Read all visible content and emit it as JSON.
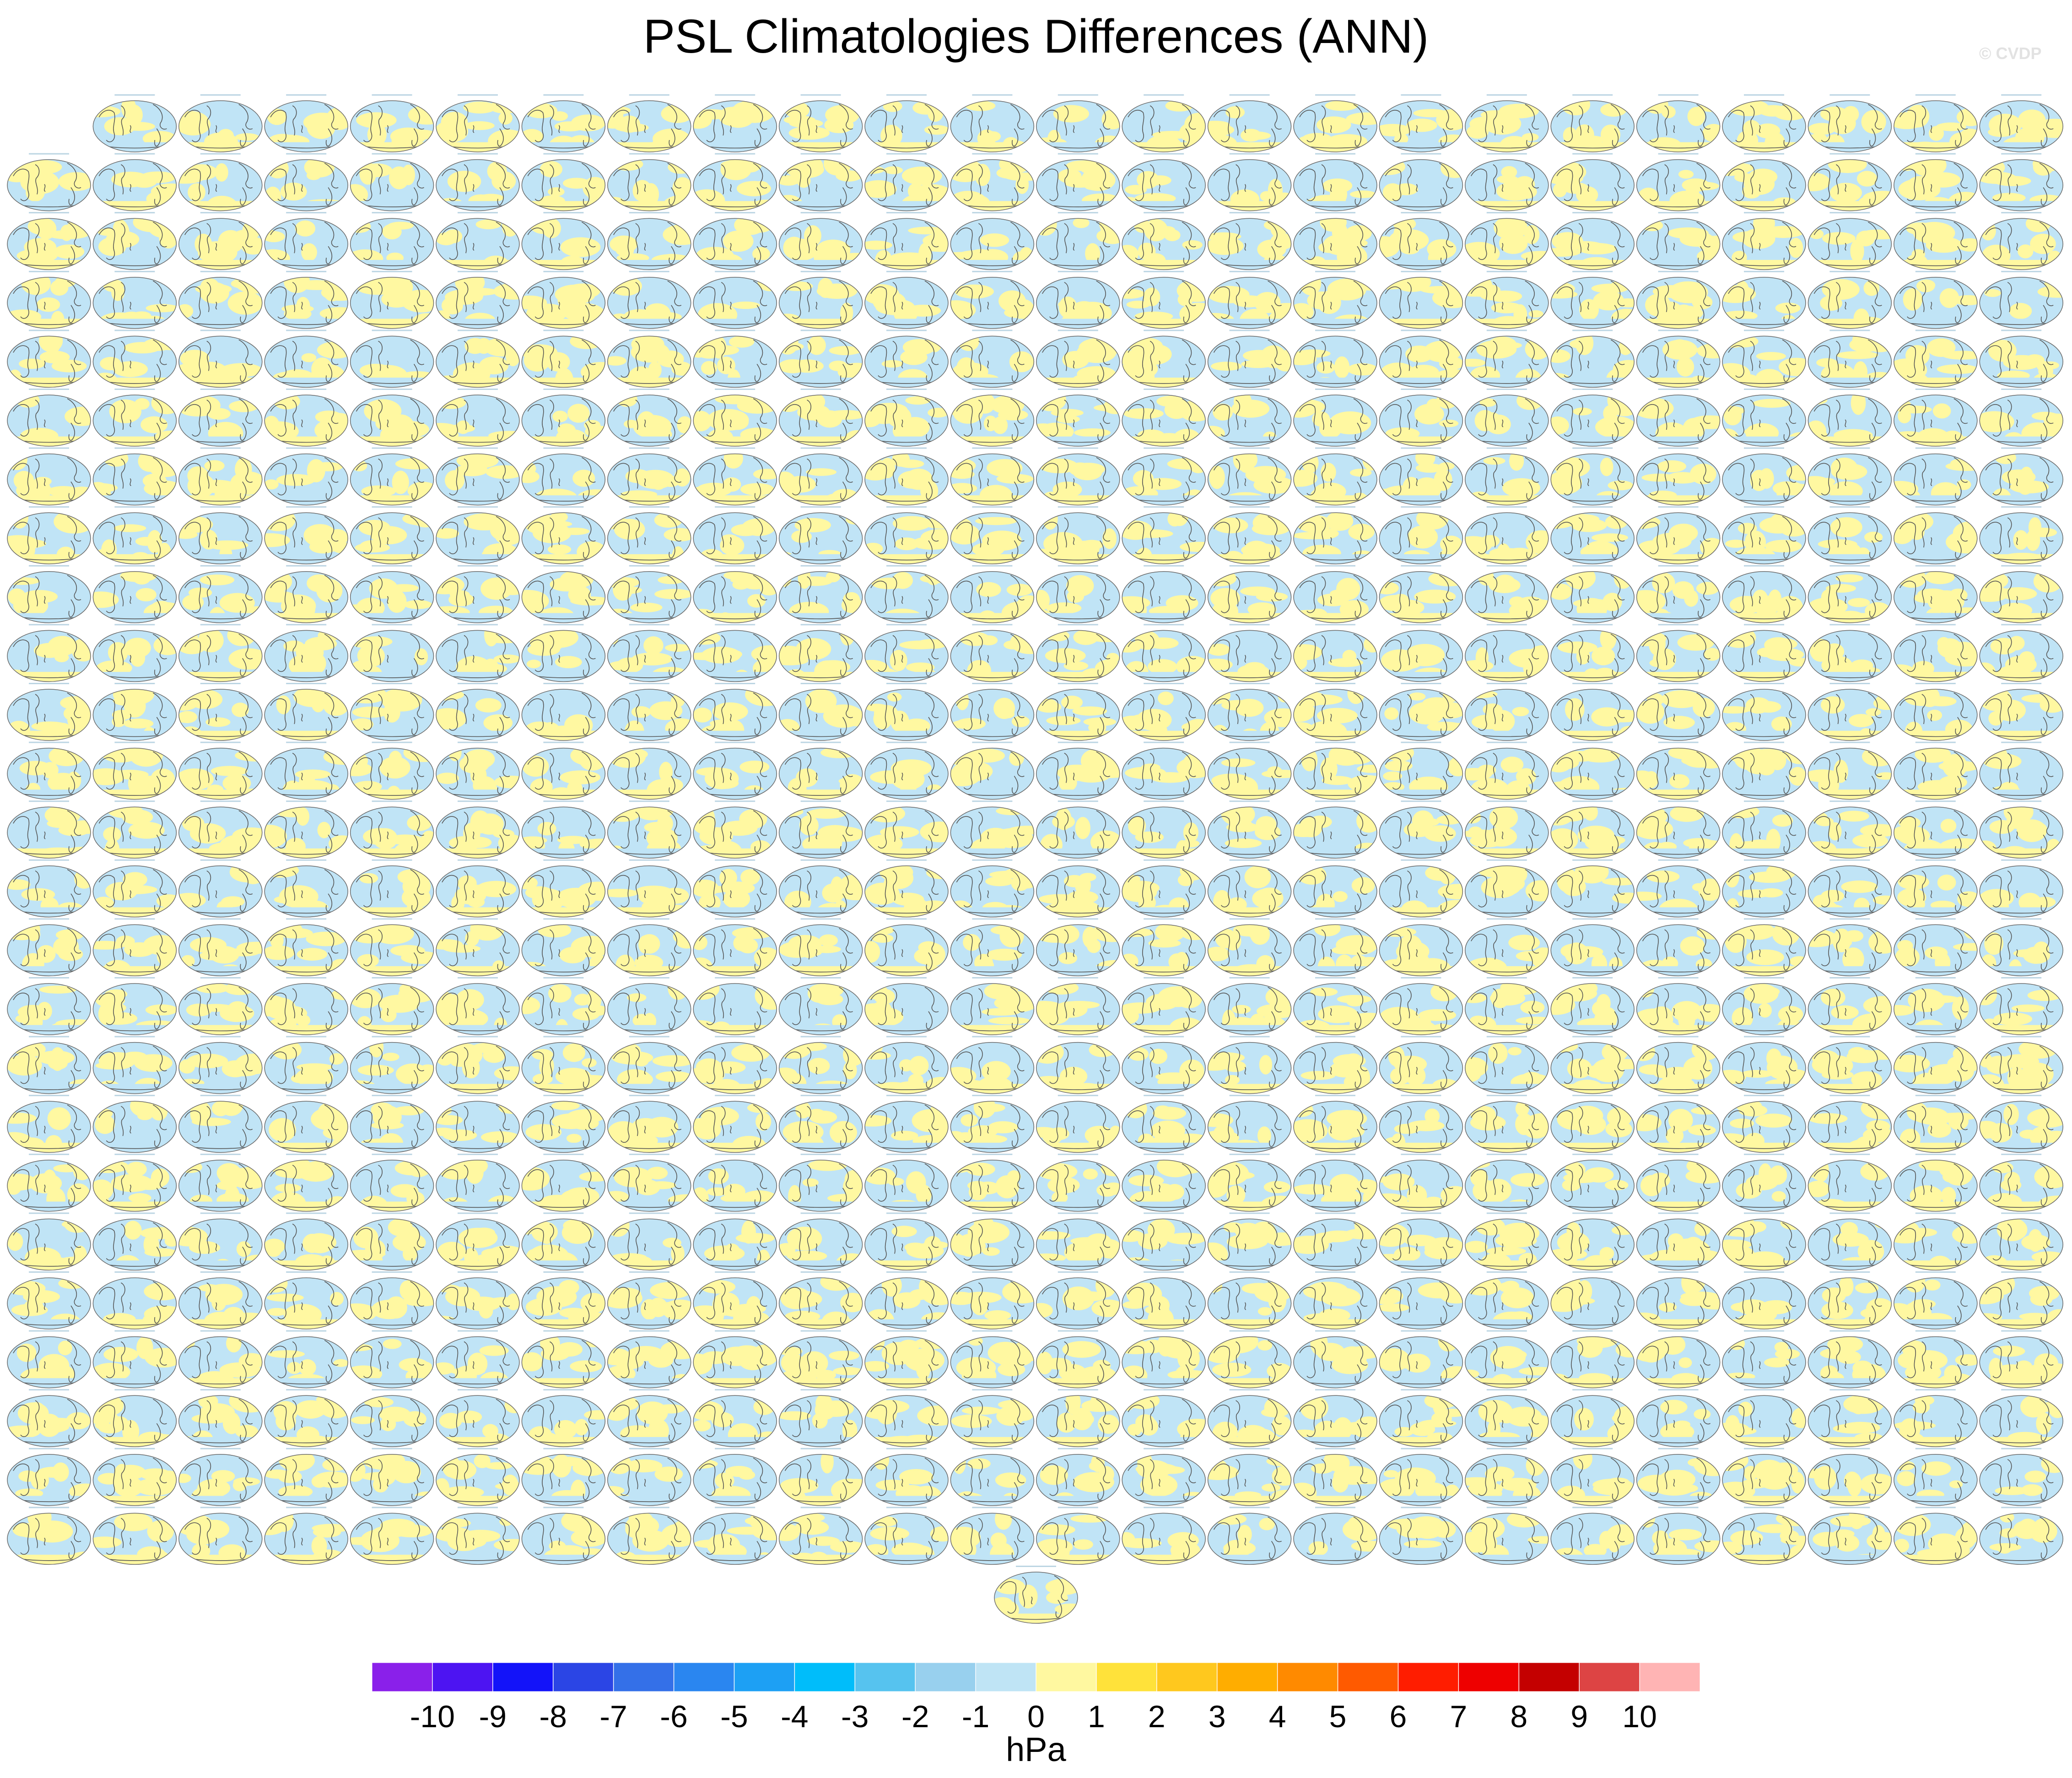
{
  "chart_data": {
    "type": "heatmap",
    "title": "PSL Climatologies Differences (ANN)",
    "credit": "© CVDP",
    "panel_layout": {
      "columns": 24,
      "rows": 25,
      "first_row_panels": 23,
      "trailing_centered_panels": 1,
      "panel_content": "global map of annual-mean sea level pressure difference"
    },
    "colorbar": {
      "units": "hPa",
      "tick_labels": [
        "-10",
        "-9",
        "-8",
        "-7",
        "-6",
        "-5",
        "-4",
        "-3",
        "-2",
        "-1",
        "0",
        "1",
        "2",
        "3",
        "4",
        "5",
        "6",
        "7",
        "8",
        "9",
        "10"
      ],
      "colors": [
        "#8a20ea",
        "#4d14f2",
        "#1313f9",
        "#2b45e5",
        "#3470e8",
        "#2a86f0",
        "#1da0f4",
        "#00bdfa",
        "#56c3ef",
        "#98d0ee",
        "#bfe4f5",
        "#fff8a0",
        "#ffe23a",
        "#ffc81e",
        "#ffad00",
        "#ff8a00",
        "#ff5a00",
        "#ff1d00",
        "#ee0000",
        "#c40000",
        "#dd4444",
        "#ffb4b4"
      ]
    }
  }
}
